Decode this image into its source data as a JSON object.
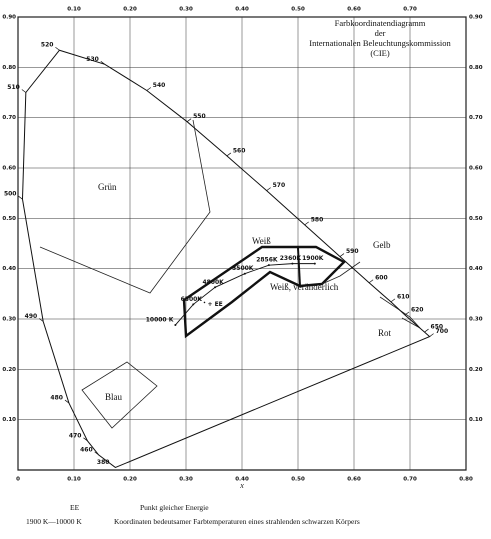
{
  "chart_data": {
    "type": "line",
    "title": [
      "Farbkoordinatendiagramm",
      "der",
      "Internationalen Beleuchtungskommission",
      "(CIE)"
    ],
    "xlabel": "x",
    "xlim": [
      0,
      0.8
    ],
    "ylim": [
      0,
      0.9
    ],
    "xticks": [
      0,
      {
        "value": 0.1,
        "label": "0.10"
      },
      {
        "value": 0.2,
        "label": "0.20"
      },
      {
        "value": 0.3,
        "label": "0.30"
      },
      {
        "value": 0.4,
        "label": "0.40"
      },
      {
        "value": 0.5,
        "label": "0.50"
      },
      {
        "value": 0.6,
        "label": "0.60"
      },
      {
        "value": 0.7,
        "label": "0.70"
      },
      {
        "value": 0.8,
        "label": "0.80"
      }
    ],
    "yticks": [
      {
        "value": 0.1,
        "label": "0.10"
      },
      {
        "value": 0.2,
        "label": "0.20"
      },
      {
        "value": 0.3,
        "label": "0.30"
      },
      {
        "value": 0.4,
        "label": "0.40"
      },
      {
        "value": 0.5,
        "label": "0.50"
      },
      {
        "value": 0.6,
        "label": "0.60"
      },
      {
        "value": 0.7,
        "label": "0.70"
      },
      {
        "value": 0.8,
        "label": "0.80"
      },
      {
        "value": 0.9,
        "label": "0.90"
      }
    ],
    "grid": true,
    "spectral_locus": {
      "wavelengths": [
        380,
        460,
        470,
        480,
        490,
        500,
        510,
        520,
        530,
        540,
        550,
        560,
        570,
        580,
        590,
        600,
        610,
        620,
        650,
        700
      ],
      "x": [
        0.174,
        0.144,
        0.124,
        0.091,
        0.045,
        0.008,
        0.014,
        0.074,
        0.155,
        0.23,
        0.302,
        0.373,
        0.444,
        0.512,
        0.575,
        0.627,
        0.666,
        0.691,
        0.726,
        0.735
      ],
      "y": [
        0.005,
        0.03,
        0.058,
        0.133,
        0.295,
        0.538,
        0.75,
        0.834,
        0.806,
        0.754,
        0.692,
        0.624,
        0.555,
        0.487,
        0.424,
        0.372,
        0.334,
        0.308,
        0.274,
        0.265
      ]
    },
    "planck_locus": {
      "labels": [
        "1900K",
        "2360K",
        "2856K",
        "3500K",
        "4800K",
        "6500K",
        "10000 K"
      ],
      "x": [
        0.53,
        0.49,
        0.448,
        0.405,
        0.352,
        0.313,
        0.281
      ],
      "y": [
        0.41,
        0.41,
        0.407,
        0.39,
        0.363,
        0.329,
        0.288
      ]
    },
    "ee_point": {
      "label": "+ EE",
      "x": 0.333,
      "y": 0.333
    },
    "regions": [
      "Grün",
      "Blau",
      "Weiß",
      "Gelb",
      "Weiß, veränderlich",
      "Rot"
    ]
  },
  "footer": {
    "rows": [
      [
        "EE",
        "Punkt gleicher Energie"
      ],
      [
        "1900 K—10000 K",
        "Koordinaten bedeutsamer Farbtemperaturen eines strahlenden schwarzen Körpers"
      ]
    ]
  }
}
